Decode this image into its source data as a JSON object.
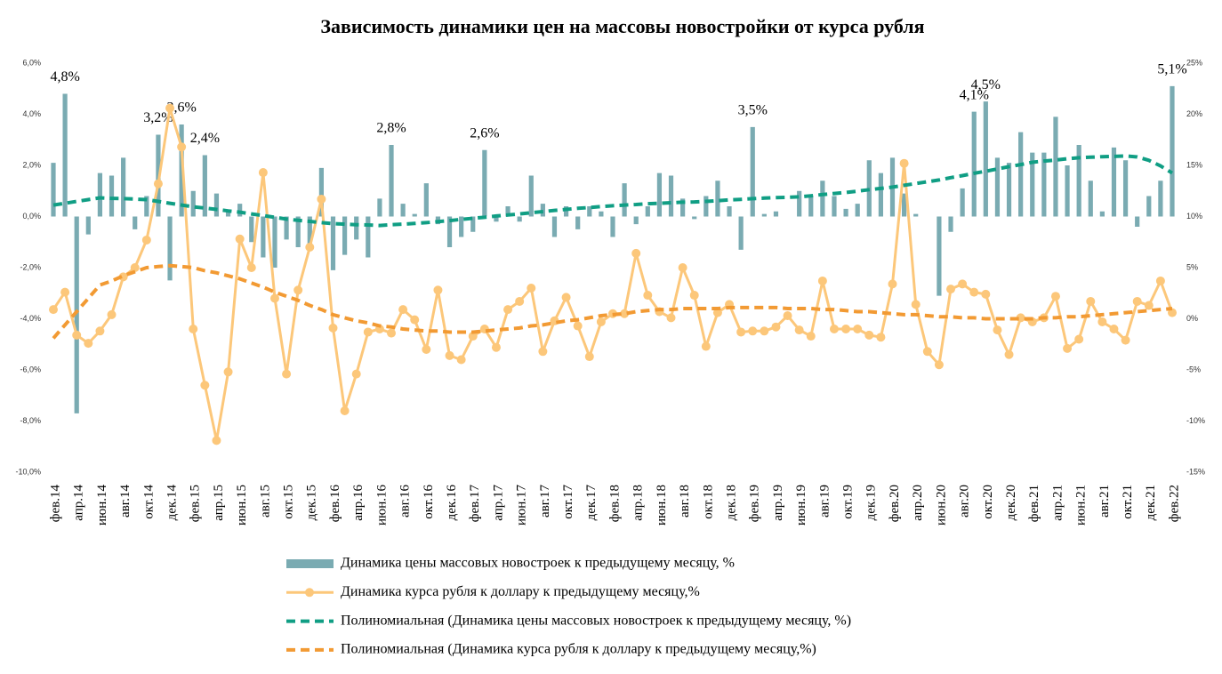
{
  "chart_data": {
    "type": "bar",
    "title": "Зависимость динамики цен на массовы новостройки от курса рубля",
    "categories": [
      "фев.14",
      null,
      "апр.14",
      null,
      "июн.14",
      null,
      "авг.14",
      null,
      "окт.14",
      null,
      "дек.14",
      null,
      "фев.15",
      null,
      "апр.15",
      null,
      "июн.15",
      null,
      "авг.15",
      null,
      "окт.15",
      null,
      "дек.15",
      null,
      "фев.16",
      null,
      "апр.16",
      null,
      "июн.16",
      null,
      "авг.16",
      null,
      "окт.16",
      null,
      "дек.16",
      null,
      "фев.17",
      null,
      "апр.17",
      null,
      "июн.17",
      null,
      "авг.17",
      null,
      "окт.17",
      null,
      "дек.17",
      null,
      "фев.18",
      null,
      "апр.18",
      null,
      "июн.18",
      null,
      "авг.18",
      null,
      "окт.18",
      null,
      "дек.18",
      null,
      "фев.19",
      null,
      "апр.19",
      null,
      "июн.19",
      null,
      "авг.19",
      null,
      "окт.19",
      null,
      "дек.19",
      null,
      "фев.20",
      null,
      "апр.20",
      null,
      "июн.20",
      null,
      "авг.20",
      null,
      "окт.20",
      null,
      "дек.20",
      null,
      "фев.21",
      null,
      "апр.21",
      null,
      "июн.21",
      null,
      "авг.21",
      null,
      "окт.21",
      null,
      "дек.21",
      null,
      "фев.22"
    ],
    "ylim": [
      -10,
      6
    ],
    "yticks": [
      {
        "value": 6,
        "label": "6,0%"
      },
      {
        "value": 4,
        "label": "4,0%"
      },
      {
        "value": 2,
        "label": "2,0%"
      },
      {
        "value": 0,
        "label": "0,0%"
      },
      {
        "value": -2,
        "label": "-2,0%"
      },
      {
        "value": -4,
        "label": "-4,0%"
      },
      {
        "value": -6,
        "label": "-6,0%"
      },
      {
        "value": -8,
        "label": "-8,0%"
      },
      {
        "value": -10,
        "label": "-10,0%"
      }
    ],
    "y2lim": [
      -15,
      25
    ],
    "y2ticks": [
      {
        "value": 25,
        "label": "25%"
      },
      {
        "value": 20,
        "label": "20%"
      },
      {
        "value": 15,
        "label": "15%"
      },
      {
        "value": 10,
        "label": "10%"
      },
      {
        "value": 5,
        "label": "5%"
      },
      {
        "value": 0,
        "label": "0%"
      },
      {
        "value": -5,
        "label": "-5%"
      },
      {
        "value": -10,
        "label": "-10%"
      },
      {
        "value": -15,
        "label": "-15%"
      }
    ],
    "grid": false,
    "legend": "bottom",
    "series": [
      {
        "name": "Динамика цены массовых новостроек к предыдущему месяцу, %",
        "type": "bar",
        "axis": "y",
        "color": "#7aabb2",
        "values": [
          2.1,
          4.8,
          -7.7,
          -0.7,
          1.7,
          1.6,
          2.3,
          -0.5,
          0.8,
          3.2,
          -2.5,
          3.6,
          1.0,
          2.4,
          0.9,
          0.2,
          0.5,
          -1.0,
          -1.6,
          -2.0,
          -0.9,
          -1.2,
          -1.2,
          1.9,
          -2.1,
          -1.5,
          -0.9,
          -1.6,
          0.7,
          2.8,
          0.5,
          0.1,
          1.3,
          -0.3,
          -1.2,
          -0.8,
          -0.6,
          2.6,
          -0.2,
          0.4,
          -0.2,
          1.6,
          0.5,
          -0.8,
          0.4,
          -0.5,
          0.4,
          0.2,
          -0.8,
          1.3,
          -0.3,
          0.4,
          1.7,
          1.6,
          0.7,
          -0.1,
          0.8,
          1.4,
          0.4,
          -1.3,
          3.5,
          0.1,
          0.2,
          0.0,
          1.0,
          0.8,
          1.4,
          0.8,
          0.3,
          0.5,
          2.2,
          1.7,
          2.3,
          0.9,
          0.1,
          0.0,
          -3.1,
          -0.6,
          1.1,
          4.1,
          4.5,
          2.3,
          2.1,
          3.3,
          2.5,
          2.5,
          3.9,
          2.0,
          2.8,
          1.4,
          0.2,
          2.7,
          2.2,
          -0.4,
          0.8,
          1.4,
          5.1
        ],
        "value_labels": [
          null,
          "4,8%",
          null,
          null,
          null,
          null,
          null,
          null,
          null,
          "3,2%",
          null,
          "3,6%",
          null,
          "2,4%",
          null,
          null,
          null,
          null,
          null,
          null,
          null,
          null,
          null,
          null,
          null,
          null,
          null,
          null,
          null,
          "2,8%",
          null,
          null,
          null,
          null,
          null,
          null,
          null,
          "2,6%",
          null,
          null,
          null,
          null,
          null,
          null,
          null,
          null,
          null,
          null,
          null,
          null,
          null,
          null,
          null,
          null,
          null,
          null,
          null,
          null,
          null,
          null,
          "3,5%",
          null,
          null,
          null,
          null,
          null,
          null,
          null,
          null,
          null,
          null,
          null,
          null,
          null,
          null,
          null,
          null,
          null,
          null,
          "4,1%",
          "4,5%",
          null,
          null,
          null,
          null,
          null,
          null,
          null,
          null,
          null,
          null,
          null,
          null,
          null,
          null,
          null,
          "5,1%"
        ]
      },
      {
        "name": "Динамика курса рубля к доллару к предыдущему месяцу,%",
        "type": "line",
        "axis": "y2",
        "color": "#fcc77a",
        "markers": true,
        "values": [
          0.9,
          2.6,
          -1.6,
          -2.4,
          -1.2,
          0.4,
          4.1,
          5.0,
          7.7,
          13.2,
          20.6,
          16.8,
          -1.0,
          -6.5,
          -11.9,
          -5.2,
          7.8,
          5.0,
          14.3,
          2.0,
          -5.4,
          2.8,
          7.0,
          11.7,
          -0.9,
          -9.0,
          -5.4,
          -1.3,
          -1.0,
          -1.4,
          0.9,
          -0.1,
          -3.0,
          2.8,
          -3.6,
          -4.0,
          -1.7,
          -1.0,
          -2.8,
          0.9,
          1.7,
          3.0,
          -3.2,
          -0.2,
          2.1,
          -0.7,
          -3.7,
          -0.3,
          0.5,
          0.5,
          6.4,
          2.3,
          0.7,
          0.1,
          5.0,
          2.3,
          -2.7,
          0.6,
          1.4,
          -1.3,
          -1.2,
          -1.2,
          -0.8,
          0.3,
          -1.1,
          -1.7,
          3.7,
          -1.0,
          -1.0,
          -1.0,
          -1.6,
          -1.8,
          3.4,
          15.2,
          1.4,
          -3.2,
          -4.5,
          2.9,
          3.4,
          2.6,
          2.4,
          -1.1,
          -3.5,
          0.1,
          -0.3,
          0.1,
          2.2,
          -2.9,
          -2.0,
          1.7,
          -0.3,
          -1.0,
          -2.1,
          1.7,
          1.3,
          3.7,
          0.6
        ]
      },
      {
        "name": "Полиномиальная (Динамика цены массовых новостроек к предыдущему месяцу, %)",
        "type": "line",
        "axis": "y",
        "color": "#109e84",
        "dashed": true,
        "values": [
          0.45,
          0.52,
          0.59,
          0.66,
          0.73,
          0.71,
          0.7,
          0.68,
          0.66,
          0.59,
          0.52,
          0.45,
          0.38,
          0.33,
          0.28,
          0.22,
          0.17,
          0.1,
          0.04,
          -0.03,
          -0.1,
          -0.15,
          -0.19,
          -0.24,
          -0.28,
          -0.3,
          -0.32,
          -0.33,
          -0.35,
          -0.32,
          -0.3,
          -0.27,
          -0.24,
          -0.2,
          -0.16,
          -0.11,
          -0.07,
          -0.03,
          0.02,
          0.06,
          0.1,
          0.15,
          0.19,
          0.24,
          0.28,
          0.32,
          0.35,
          0.39,
          0.42,
          0.45,
          0.47,
          0.5,
          0.52,
          0.54,
          0.56,
          0.57,
          0.59,
          0.62,
          0.65,
          0.67,
          0.7,
          0.72,
          0.74,
          0.75,
          0.77,
          0.81,
          0.86,
          0.9,
          0.94,
          0.99,
          1.05,
          1.1,
          1.15,
          1.22,
          1.29,
          1.36,
          1.43,
          1.52,
          1.6,
          1.69,
          1.77,
          1.86,
          1.95,
          2.03,
          2.12,
          2.17,
          2.21,
          2.26,
          2.3,
          2.32,
          2.34,
          2.35,
          2.37,
          2.33,
          2.2,
          1.98,
          1.7
        ]
      },
      {
        "name": "Полиномиальная (Динамика курса рубля к доллару к предыдущему месяцу,%)",
        "type": "line",
        "axis": "y2",
        "color": "#f29a33",
        "dashed": true,
        "values": [
          -1.9,
          -0.6,
          0.7,
          2.0,
          3.3,
          3.7,
          4.2,
          4.6,
          5.0,
          5.1,
          5.2,
          5.1,
          5.0,
          4.7,
          4.5,
          4.2,
          3.9,
          3.5,
          3.1,
          2.6,
          2.2,
          1.8,
          1.3,
          0.9,
          0.4,
          0.1,
          -0.2,
          -0.4,
          -0.7,
          -0.8,
          -1.0,
          -1.1,
          -1.2,
          -1.2,
          -1.3,
          -1.3,
          -1.3,
          -1.2,
          -1.1,
          -1.0,
          -0.9,
          -0.7,
          -0.6,
          -0.4,
          -0.2,
          -0.1,
          0.1,
          0.3,
          0.4,
          0.5,
          0.7,
          0.8,
          0.9,
          0.9,
          1.0,
          1.0,
          1.0,
          1.0,
          1.1,
          1.1,
          1.1,
          1.1,
          1.1,
          1.0,
          1.0,
          1.0,
          0.9,
          0.9,
          0.8,
          0.7,
          0.7,
          0.6,
          0.5,
          0.4,
          0.4,
          0.3,
          0.2,
          0.2,
          0.1,
          0.1,
          0.0,
          0.0,
          0.0,
          0.0,
          0.0,
          0.1,
          0.1,
          0.2,
          0.2,
          0.3,
          0.4,
          0.5,
          0.6,
          0.7,
          0.8,
          0.9,
          1.0
        ]
      }
    ]
  }
}
